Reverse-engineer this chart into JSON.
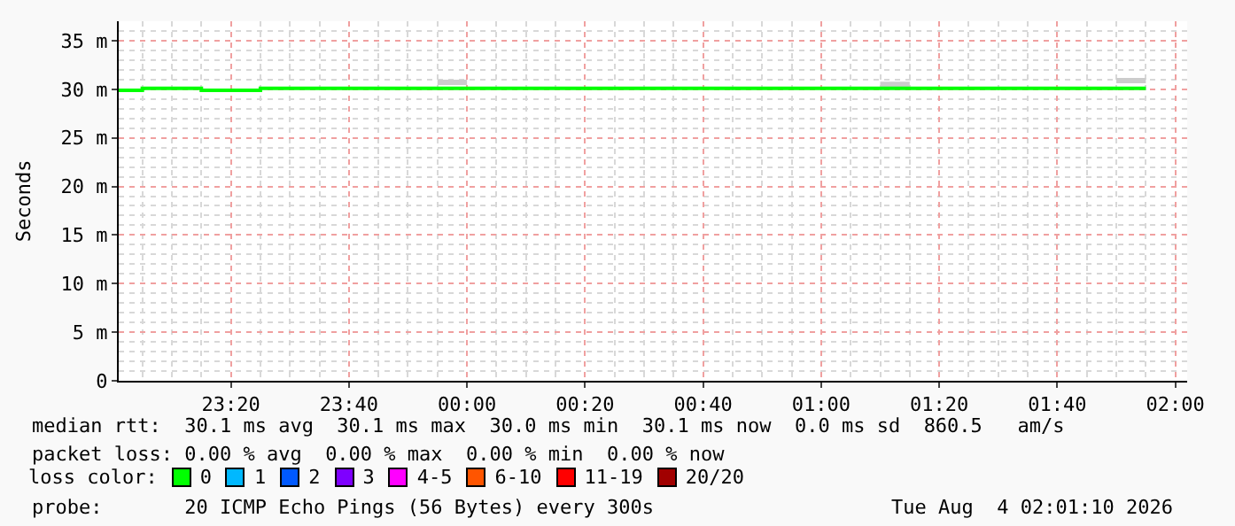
{
  "chart_data": {
    "type": "step",
    "ylabel": "Seconds",
    "legend_title": "loss color:",
    "legend": "bottom",
    "grid": true,
    "x": [
      "2026-08-03T23:01",
      "2026-08-03T23:05",
      "2026-08-03T23:10",
      "2026-08-03T23:15",
      "2026-08-03T23:20",
      "2026-08-03T23:25",
      "2026-08-03T23:30",
      "2026-08-03T23:35",
      "2026-08-03T23:40",
      "2026-08-03T23:45",
      "2026-08-03T23:50",
      "2026-08-03T23:55",
      "2026-08-04T00:00",
      "2026-08-04T00:05",
      "2026-08-04T00:10",
      "2026-08-04T00:15",
      "2026-08-04T00:20",
      "2026-08-04T00:25",
      "2026-08-04T00:30",
      "2026-08-04T00:35",
      "2026-08-04T00:40",
      "2026-08-04T00:45",
      "2026-08-04T00:50",
      "2026-08-04T00:55",
      "2026-08-04T01:00",
      "2026-08-04T01:05",
      "2026-08-04T01:10",
      "2026-08-04T01:15",
      "2026-08-04T01:20",
      "2026-08-04T01:25",
      "2026-08-04T01:30",
      "2026-08-04T01:35",
      "2026-08-04T01:40",
      "2026-08-04T01:45",
      "2026-08-04T01:50",
      "2026-08-04T01:55"
    ],
    "series": [
      {
        "type": "step",
        "color": "#cccccc",
        "x": [
          "2026-08-03T23:55",
          "2026-08-04T00:00",
          "2026-08-04T00:01",
          "2026-08-04T01:10",
          "2026-08-04T01:15",
          "2026-08-04T01:16",
          "2026-08-04T01:50",
          "2026-08-04T01:55"
        ],
        "values": [
          30.7,
          30.7,
          null,
          30.5,
          30.5,
          null,
          30.9,
          30.9
        ]
      },
      {
        "name": "0",
        "color": "#00ff00",
        "values": [
          29.9,
          30.1,
          30.1,
          29.9,
          29.9,
          30.1,
          30.1,
          30.1,
          30.1,
          30.1,
          30.1,
          30.1,
          30.1,
          30.1,
          30.1,
          30.1,
          30.1,
          30.1,
          30.1,
          30.1,
          30.1,
          30.1,
          30.1,
          30.1,
          30.1,
          30.1,
          30.1,
          30.1,
          30.1,
          30.1,
          30.1,
          30.1,
          30.1,
          30.1,
          30.1,
          30.1
        ]
      },
      {
        "name": "1",
        "color": "#00b8ff",
        "values": [
          null,
          null,
          null,
          null,
          null,
          null,
          null,
          null,
          null,
          null,
          null,
          null,
          null,
          null,
          null,
          null,
          null,
          null,
          null,
          null,
          null,
          null,
          null,
          null,
          null,
          null,
          null,
          null,
          null,
          null,
          null,
          null,
          null,
          null,
          null,
          null
        ]
      },
      {
        "name": "2",
        "color": "#0059ff",
        "values": [
          null,
          null,
          null,
          null,
          null,
          null,
          null,
          null,
          null,
          null,
          null,
          null,
          null,
          null,
          null,
          null,
          null,
          null,
          null,
          null,
          null,
          null,
          null,
          null,
          null,
          null,
          null,
          null,
          null,
          null,
          null,
          null,
          null,
          null,
          null,
          null
        ]
      },
      {
        "name": "3",
        "color": "#7e00ff",
        "values": [
          null,
          null,
          null,
          null,
          null,
          null,
          null,
          null,
          null,
          null,
          null,
          null,
          null,
          null,
          null,
          null,
          null,
          null,
          null,
          null,
          null,
          null,
          null,
          null,
          null,
          null,
          null,
          null,
          null,
          null,
          null,
          null,
          null,
          null,
          null,
          null
        ]
      },
      {
        "name": "4-5",
        "color": "#ff00ff",
        "values": [
          null,
          null,
          null,
          null,
          null,
          null,
          null,
          null,
          null,
          null,
          null,
          null,
          null,
          null,
          null,
          null,
          null,
          null,
          null,
          null,
          null,
          null,
          null,
          null,
          null,
          null,
          null,
          null,
          null,
          null,
          null,
          null,
          null,
          null,
          null,
          null
        ]
      },
      {
        "name": "6-10",
        "color": "#ff5500",
        "values": [
          null,
          null,
          null,
          null,
          null,
          null,
          null,
          null,
          null,
          null,
          null,
          null,
          null,
          null,
          null,
          null,
          null,
          null,
          null,
          null,
          null,
          null,
          null,
          null,
          null,
          null,
          null,
          null,
          null,
          null,
          null,
          null,
          null,
          null,
          null,
          null
        ]
      },
      {
        "name": "11-19",
        "color": "#ff0000",
        "values": [
          null,
          null,
          null,
          null,
          null,
          null,
          null,
          null,
          null,
          null,
          null,
          null,
          null,
          null,
          null,
          null,
          null,
          null,
          null,
          null,
          null,
          null,
          null,
          null,
          null,
          null,
          null,
          null,
          null,
          null,
          null,
          null,
          null,
          null,
          null,
          null
        ]
      },
      {
        "name": "20/20",
        "color": "#a10000",
        "values": [
          null,
          null,
          null,
          null,
          null,
          null,
          null,
          null,
          null,
          null,
          null,
          null,
          null,
          null,
          null,
          null,
          null,
          null,
          null,
          null,
          null,
          null,
          null,
          null,
          null,
          null,
          null,
          null,
          null,
          null,
          null,
          null,
          null,
          null,
          null,
          null
        ]
      }
    ],
    "xlim": [
      "2026-08-03T23:01",
      "2026-08-04T02:02"
    ],
    "xticks": [
      {
        "value": "2026-08-03T23:20",
        "label": "23:20"
      },
      {
        "value": "2026-08-03T23:40",
        "label": "23:40"
      },
      {
        "value": "2026-08-04T00:00",
        "label": "00:00"
      },
      {
        "value": "2026-08-04T00:20",
        "label": "00:20"
      },
      {
        "value": "2026-08-04T00:40",
        "label": "00:40"
      },
      {
        "value": "2026-08-04T01:00",
        "label": "01:00"
      },
      {
        "value": "2026-08-04T01:20",
        "label": "01:20"
      },
      {
        "value": "2026-08-04T01:40",
        "label": "01:40"
      },
      {
        "value": "2026-08-04T02:00",
        "label": "02:00"
      }
    ],
    "ylim": [
      0,
      37
    ],
    "yticks": [
      0,
      {
        "value": 5,
        "label": "5 m"
      },
      {
        "value": 10,
        "label": "10 m"
      },
      {
        "value": 15,
        "label": "15 m"
      },
      {
        "value": 20,
        "label": "20 m"
      },
      {
        "value": 25,
        "label": "25 m"
      },
      {
        "value": 30,
        "label": "30 m"
      },
      {
        "value": 35,
        "label": "35 m"
      }
    ],
    "annotations": [
      "median rtt:  30.1 ms avg  30.1 ms max  30.0 ms min  30.1 ms now  0.0 ms sd  860.5   am/s",
      "packet loss: 0.00 % avg  0.00 % max  0.00 % min  0.00 % now",
      "probe:       20 ICMP Echo Pings (56 Bytes) every 300s",
      "Tue Aug  4 02:01:10 2026"
    ]
  }
}
